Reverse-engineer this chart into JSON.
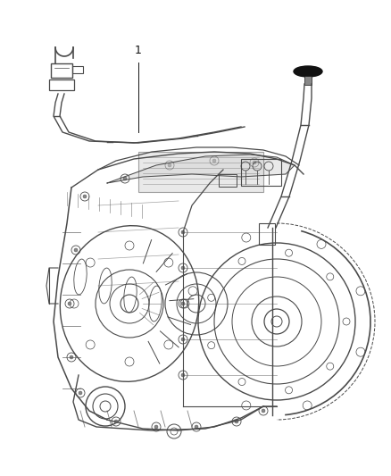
{
  "background_color": "#ffffff",
  "line_color": "#4a4a4a",
  "dark_color": "#111111",
  "gray_fill": "#d8d8d8",
  "light_gray": "#e8e8e8",
  "figsize": [
    4.38,
    5.33
  ],
  "dpi": 100,
  "label_text": "1",
  "label_fontsize": 9,
  "connector_color": "#333333",
  "cap_color": "#1a1a1a"
}
